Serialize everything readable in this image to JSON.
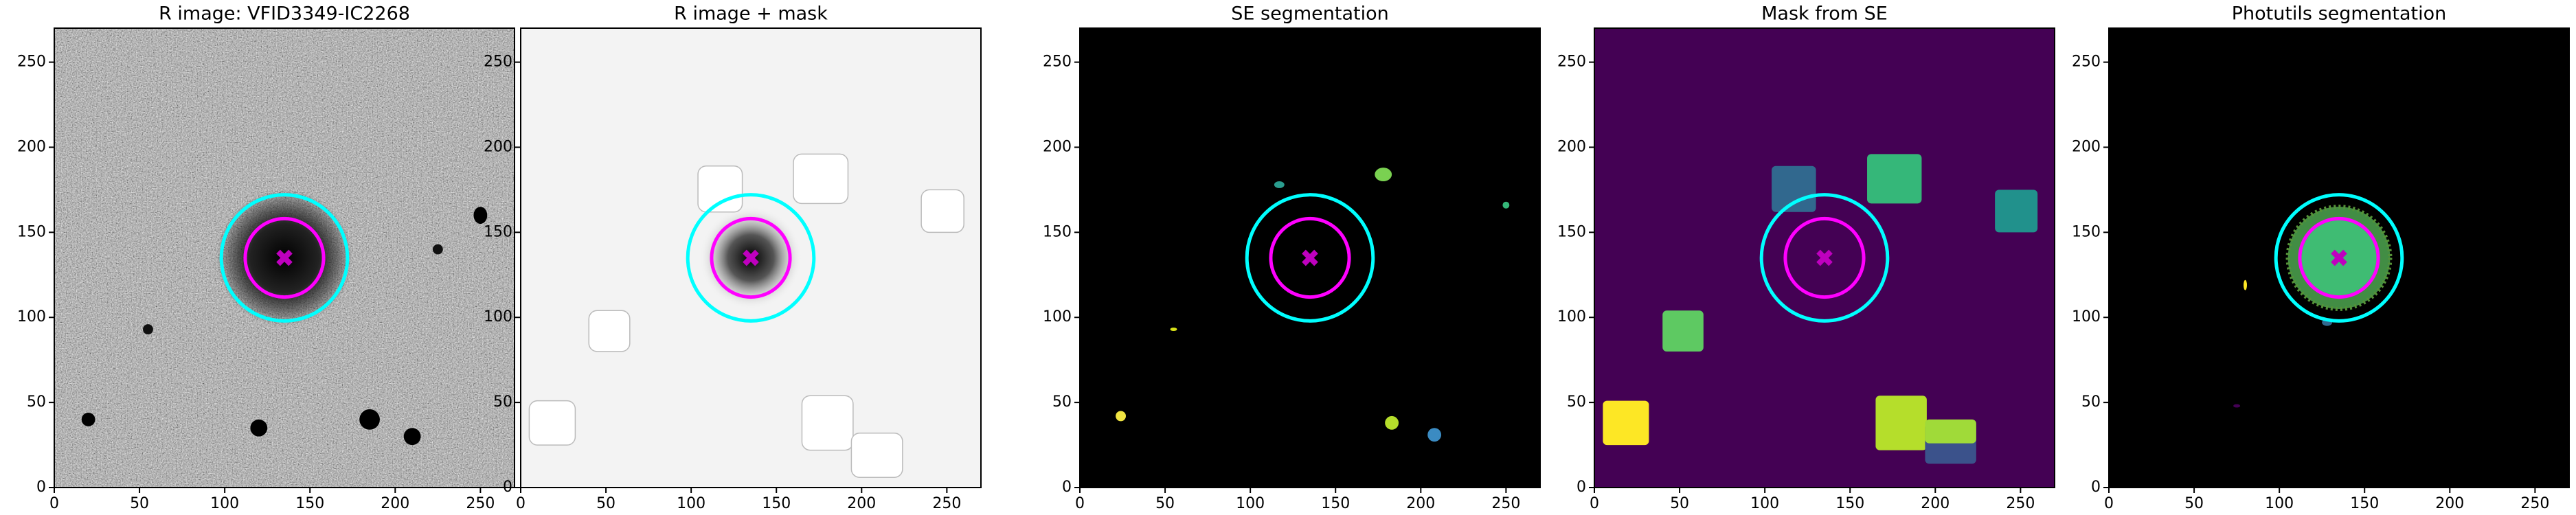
{
  "chart_data": [
    {
      "type": "image",
      "title": "R image: VFID3349-IC2268",
      "xlim": [
        0,
        270
      ],
      "ylim": [
        0,
        270
      ],
      "xticks": [
        0,
        50,
        100,
        150,
        200,
        250
      ],
      "yticks": [
        0,
        50,
        100,
        150,
        200,
        250
      ],
      "marker": {
        "x": 135,
        "y": 135,
        "color": "#bf00bf"
      },
      "circles": [
        {
          "r": 23,
          "color": "#ff00ff"
        },
        {
          "r": 37,
          "color": "#00ffff"
        }
      ]
    },
    {
      "type": "image",
      "title": "R image + mask",
      "xlim": [
        0,
        270
      ],
      "ylim": [
        0,
        270
      ],
      "xticks": [
        0,
        50,
        100,
        150,
        200,
        250
      ],
      "yticks": [
        0,
        50,
        100,
        150,
        200,
        250
      ],
      "marker": {
        "x": 135,
        "y": 135,
        "color": "#bf00bf"
      },
      "circles": [
        {
          "r": 23,
          "color": "#ff00ff"
        },
        {
          "r": 37,
          "color": "#00ffff"
        }
      ]
    },
    {
      "type": "image",
      "title": "SE segmentation",
      "xlim": [
        0,
        270
      ],
      "ylim": [
        0,
        270
      ],
      "xticks": [
        0,
        50,
        100,
        150,
        200,
        250
      ],
      "yticks": [
        0,
        50,
        100,
        150,
        200,
        250
      ],
      "marker": {
        "x": 135,
        "y": 135,
        "color": "#bf00bf"
      },
      "circles": [
        {
          "r": 23,
          "color": "#ff00ff"
        },
        {
          "r": 37,
          "color": "#00ffff"
        }
      ]
    },
    {
      "type": "image",
      "title": "Mask from SE",
      "xlim": [
        0,
        270
      ],
      "ylim": [
        0,
        270
      ],
      "xticks": [
        0,
        50,
        100,
        150,
        200,
        250
      ],
      "yticks": [
        0,
        50,
        100,
        150,
        200,
        250
      ],
      "marker": {
        "x": 135,
        "y": 135,
        "color": "#bf00bf"
      },
      "circles": [
        {
          "r": 23,
          "color": "#ff00ff"
        },
        {
          "r": 37,
          "color": "#00ffff"
        }
      ]
    },
    {
      "type": "image",
      "title": "Photutils segmentation",
      "xlim": [
        0,
        270
      ],
      "ylim": [
        0,
        270
      ],
      "xticks": [
        0,
        50,
        100,
        150,
        200,
        250
      ],
      "yticks": [
        0,
        50,
        100,
        150,
        200,
        250
      ],
      "marker": {
        "x": 135,
        "y": 135,
        "color": "#bf00bf"
      },
      "circles": [
        {
          "r": 23,
          "color": "#ff00ff"
        },
        {
          "r": 37,
          "color": "#00ffff"
        }
      ]
    }
  ]
}
